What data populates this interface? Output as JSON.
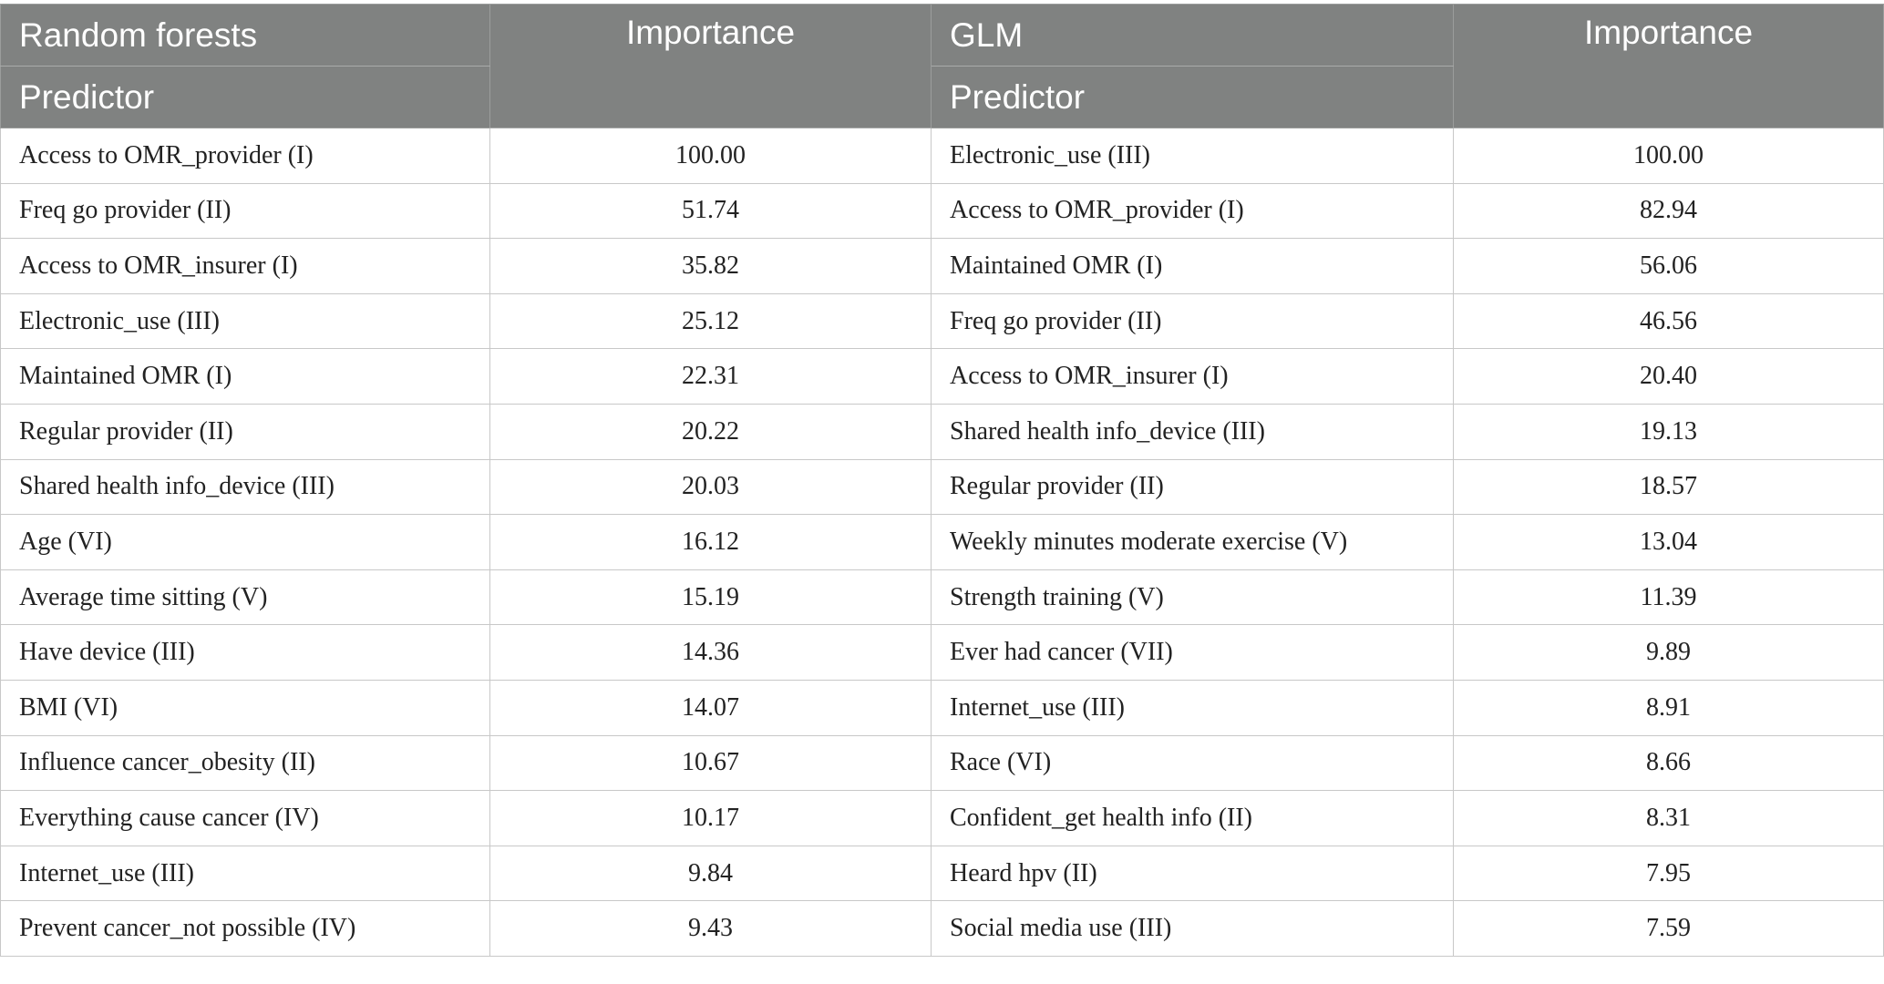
{
  "header": {
    "rf_model": "Random forests",
    "rf_predictor": "Predictor",
    "rf_importance": "Importance",
    "glm_model": "GLM",
    "glm_predictor": "Predictor",
    "glm_importance": "Importance"
  },
  "rows": [
    {
      "rf_predictor": "Access to OMR_provider (I)",
      "rf_importance": "100.00",
      "glm_predictor": "Electronic_use (III)",
      "glm_importance": "100.00"
    },
    {
      "rf_predictor": "Freq go provider (II)",
      "rf_importance": "51.74",
      "glm_predictor": "Access to OMR_provider (I)",
      "glm_importance": "82.94"
    },
    {
      "rf_predictor": "Access to OMR_insurer (I)",
      "rf_importance": "35.82",
      "glm_predictor": "Maintained OMR (I)",
      "glm_importance": "56.06"
    },
    {
      "rf_predictor": "Electronic_use (III)",
      "rf_importance": "25.12",
      "glm_predictor": "Freq go provider (II)",
      "glm_importance": "46.56"
    },
    {
      "rf_predictor": "Maintained OMR (I)",
      "rf_importance": "22.31",
      "glm_predictor": "Access to OMR_insurer (I)",
      "glm_importance": "20.40"
    },
    {
      "rf_predictor": "Regular provider (II)",
      "rf_importance": "20.22",
      "glm_predictor": "Shared health info_device (III)",
      "glm_importance": "19.13"
    },
    {
      "rf_predictor": "Shared health info_device (III)",
      "rf_importance": "20.03",
      "glm_predictor": "Regular provider (II)",
      "glm_importance": "18.57"
    },
    {
      "rf_predictor": "Age (VI)",
      "rf_importance": "16.12",
      "glm_predictor": "Weekly minutes moderate exercise (V)",
      "glm_importance": "13.04"
    },
    {
      "rf_predictor": "Average time sitting (V)",
      "rf_importance": "15.19",
      "glm_predictor": "Strength training (V)",
      "glm_importance": "11.39"
    },
    {
      "rf_predictor": "Have device (III)",
      "rf_importance": "14.36",
      "glm_predictor": "Ever had cancer (VII)",
      "glm_importance": "9.89"
    },
    {
      "rf_predictor": "BMI (VI)",
      "rf_importance": "14.07",
      "glm_predictor": "Internet_use (III)",
      "glm_importance": "8.91"
    },
    {
      "rf_predictor": "Influence cancer_obesity (II)",
      "rf_importance": "10.67",
      "glm_predictor": "Race (VI)",
      "glm_importance": "8.66"
    },
    {
      "rf_predictor": "Everything cause cancer (IV)",
      "rf_importance": "10.17",
      "glm_predictor": "Confident_get health info (II)",
      "glm_importance": "8.31"
    },
    {
      "rf_predictor": "Internet_use (III)",
      "rf_importance": "9.84",
      "glm_predictor": "Heard hpv (II)",
      "glm_importance": "7.95"
    },
    {
      "rf_predictor": "Prevent cancer_not possible (IV)",
      "rf_importance": "9.43",
      "glm_predictor": "Social media use (III)",
      "glm_importance": "7.59"
    }
  ]
}
